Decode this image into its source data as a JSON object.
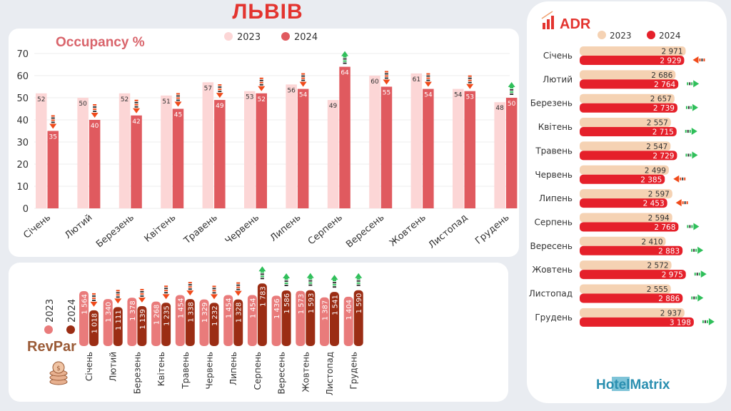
{
  "title": "ЛЬВІВ",
  "colors": {
    "occ_2023": "#fcd6d6",
    "occ_2024": "#e05a5f",
    "rev_2023": "#e97b7b",
    "rev_2024": "#9b2d14",
    "adr_2023": "#f5d2b3",
    "adr_2024": "#e5202a",
    "up": "#2fbf5a",
    "down": "#f04a1a",
    "title": "#e3342f"
  },
  "brand": {
    "logo_text": "HotelMatrix"
  },
  "chart_data": [
    {
      "type": "bar",
      "title": "Occupancy %",
      "categories": [
        "Січень",
        "Лютий",
        "Березень",
        "Квітень",
        "Травень",
        "Червень",
        "Липень",
        "Серпень",
        "Вересень",
        "Жовтень",
        "Листопад",
        "Грудень"
      ],
      "series": [
        {
          "name": "2023",
          "values": [
            52,
            50,
            52,
            51,
            57,
            53,
            56,
            49,
            60,
            61,
            54,
            48
          ]
        },
        {
          "name": "2024",
          "values": [
            35,
            40,
            42,
            45,
            49,
            52,
            54,
            64,
            55,
            54,
            53,
            50
          ]
        }
      ],
      "ylim": [
        0,
        70
      ],
      "yticks": [
        0,
        10,
        20,
        30,
        40,
        50,
        60,
        70
      ],
      "grid": true,
      "legend": "top-center"
    },
    {
      "type": "bar",
      "title": "RevPar",
      "categories": [
        "Січень",
        "Лютий",
        "Березень",
        "Квітень",
        "Травень",
        "Червень",
        "Липень",
        "Серпень",
        "Вересень",
        "Жовтень",
        "Листопад",
        "Грудень"
      ],
      "series": [
        {
          "name": "2023",
          "values": [
            1564,
            1340,
            1378,
            1268,
            1454,
            1329,
            1454,
            1454,
            1436,
            1573,
            1387,
            1404
          ]
        },
        {
          "name": "2024",
          "values": [
            1018,
            1111,
            1139,
            1235,
            1338,
            1232,
            1328,
            1783,
            1586,
            1593,
            1541,
            1590
          ]
        }
      ],
      "legend": "left"
    },
    {
      "type": "bar",
      "orientation": "horizontal",
      "title": "ADR",
      "categories": [
        "Січень",
        "Лютий",
        "Березень",
        "Квітень",
        "Травень",
        "Червень",
        "Липень",
        "Серпень",
        "Вересень",
        "Жовтень",
        "Листопад",
        "Грудень"
      ],
      "series": [
        {
          "name": "2023",
          "values": [
            2971,
            2686,
            2657,
            2557,
            2547,
            2499,
            2597,
            2594,
            2410,
            2572,
            2555,
            2937
          ]
        },
        {
          "name": "2024",
          "values": [
            2929,
            2764,
            2739,
            2715,
            2729,
            2385,
            2453,
            2768,
            2883,
            2975,
            2886,
            3198
          ]
        }
      ],
      "legend": "top"
    }
  ]
}
